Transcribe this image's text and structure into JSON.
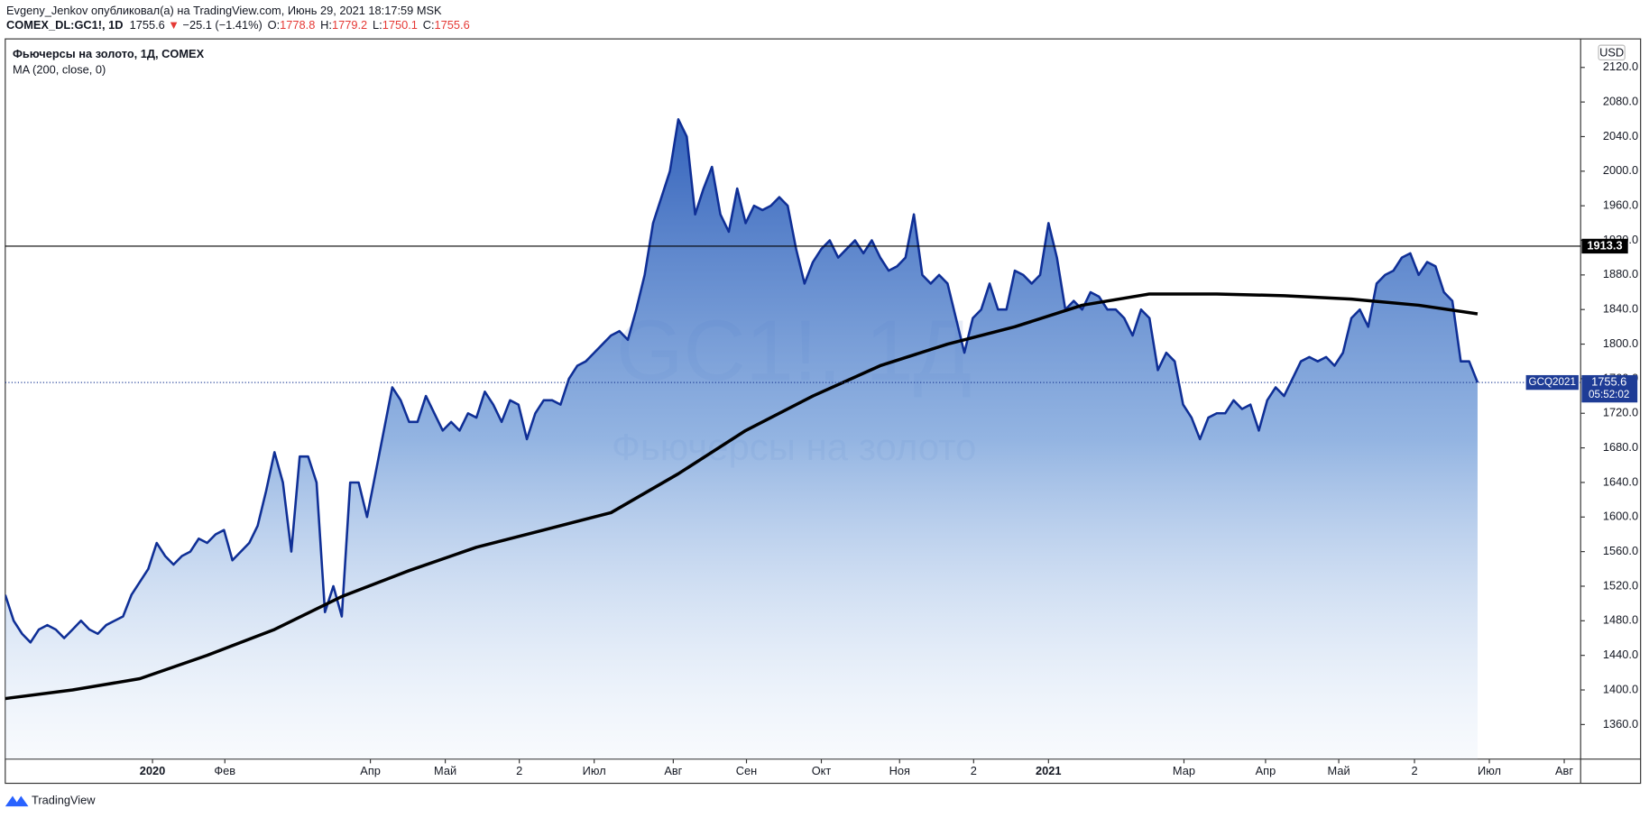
{
  "header": {
    "author": "Evgeny_Jenkov опубликовал(а) на TradingView.com, Июнь 29, 2021 18:17:59 MSK",
    "symbol": "COMEX_DL:GC1!, 1D",
    "last": "1755.6",
    "arrow": "▼",
    "change": "−25.1 (−1.41%)",
    "ohlc": [
      {
        "label": "O:",
        "value": "1778.8"
      },
      {
        "label": "H:",
        "value": "1779.2"
      },
      {
        "label": "L:",
        "value": "1750.1"
      },
      {
        "label": "C:",
        "value": "1755.6"
      }
    ]
  },
  "chart_data": {
    "type": "area",
    "title": "Фьючерсы на золото, 1Д, COMEX",
    "watermark": [
      "GC1!, 1Д",
      "Фьючерсы на золото"
    ],
    "currency": "USD",
    "xlim": [
      0,
      187.25
    ],
    "ylim": [
      1320,
      2153
    ],
    "xticks": [
      {
        "value": 17.5,
        "label": "2020"
      },
      {
        "value": 26.1,
        "label": "Фев"
      },
      {
        "value": 43.4,
        "label": "Апр"
      },
      {
        "value": 52.3,
        "label": "Май"
      },
      {
        "value": 61.1,
        "label": "2"
      },
      {
        "value": 70,
        "label": "Июл"
      },
      {
        "value": 79.4,
        "label": "Авг"
      },
      {
        "value": 88.1,
        "label": "Сен"
      },
      {
        "value": 97,
        "label": "Окт"
      },
      {
        "value": 106.3,
        "label": "Ноя"
      },
      {
        "value": 115.1,
        "label": "2"
      },
      {
        "value": 124,
        "label": "2021"
      },
      {
        "value": 140.1,
        "label": "Мар"
      },
      {
        "value": 149.8,
        "label": "Апр"
      },
      {
        "value": 158.5,
        "label": "Май"
      },
      {
        "value": 167.5,
        "label": "2"
      },
      {
        "value": 176.4,
        "label": "Июл"
      },
      {
        "value": 185.3,
        "label": "Авг"
      }
    ],
    "yticks": [
      {
        "value": 1360,
        "label": "1360.0"
      },
      {
        "value": 1400,
        "label": "1400.0"
      },
      {
        "value": 1440,
        "label": "1440.0"
      },
      {
        "value": 1480,
        "label": "1480.0"
      },
      {
        "value": 1520,
        "label": "1520.0"
      },
      {
        "value": 1560,
        "label": "1560.0"
      },
      {
        "value": 1600,
        "label": "1600.0"
      },
      {
        "value": 1640,
        "label": "1640.0"
      },
      {
        "value": 1680,
        "label": "1680.0"
      },
      {
        "value": 1720,
        "label": "1720.0"
      },
      {
        "value": 1760,
        "label": "1760.0"
      },
      {
        "value": 1800,
        "label": "1800.0"
      },
      {
        "value": 1840,
        "label": "1840.0"
      },
      {
        "value": 1880,
        "label": "1880.0"
      },
      {
        "value": 1920,
        "label": "1920.0"
      },
      {
        "value": 1960,
        "label": "1960.0"
      },
      {
        "value": 2000,
        "label": "2000.0"
      },
      {
        "value": 2040,
        "label": "2040.0"
      },
      {
        "value": 2080,
        "label": "2080.0"
      },
      {
        "value": 2120,
        "label": "2120.0"
      }
    ],
    "hline": 1913.3,
    "countdown": "05:52:02",
    "series": [
      {
        "name": "GCQ2021",
        "color": "#0f2f96",
        "values": [
          1510,
          1480,
          1465,
          1455,
          1470,
          1475,
          1470,
          1460,
          1470,
          1480,
          1470,
          1465,
          1475,
          1480,
          1485,
          1510,
          1525,
          1540,
          1570,
          1555,
          1545,
          1555,
          1560,
          1575,
          1570,
          1580,
          1585,
          1550,
          1560,
          1570,
          1590,
          1630,
          1675,
          1640,
          1560,
          1670,
          1670,
          1640,
          1490,
          1520,
          1485,
          1640,
          1640,
          1600,
          1650,
          1700,
          1750,
          1735,
          1710,
          1710,
          1740,
          1720,
          1700,
          1710,
          1700,
          1720,
          1715,
          1745,
          1730,
          1710,
          1735,
          1730,
          1690,
          1720,
          1735,
          1735,
          1730,
          1760,
          1775,
          1780,
          1790,
          1800,
          1810,
          1815,
          1805,
          1840,
          1880,
          1940,
          1970,
          2000,
          2060,
          2040,
          1950,
          1980,
          2005,
          1950,
          1930,
          1980,
          1940,
          1960,
          1955,
          1960,
          1970,
          1960,
          1910,
          1870,
          1895,
          1910,
          1920,
          1900,
          1910,
          1920,
          1905,
          1920,
          1900,
          1885,
          1890,
          1900,
          1950,
          1880,
          1870,
          1880,
          1870,
          1830,
          1790,
          1830,
          1840,
          1870,
          1840,
          1840,
          1885,
          1880,
          1870,
          1880,
          1940,
          1900,
          1840,
          1850,
          1840,
          1860,
          1855,
          1840,
          1840,
          1830,
          1810,
          1840,
          1830,
          1770,
          1790,
          1780,
          1730,
          1715,
          1690,
          1715,
          1720,
          1720,
          1735,
          1725,
          1730,
          1700,
          1735,
          1750,
          1740,
          1760,
          1780,
          1785,
          1780,
          1785,
          1775,
          1790,
          1830,
          1840,
          1820,
          1870,
          1880,
          1885,
          1900,
          1905,
          1880,
          1895,
          1890,
          1860,
          1850,
          1780,
          1780,
          1755.6
        ]
      },
      {
        "name": "MA (200, close, 0)",
        "color": "#000000",
        "x": [
          0,
          8,
          16,
          24,
          32,
          40,
          48,
          56,
          64,
          72,
          80,
          88,
          96,
          104,
          112,
          120,
          128,
          136,
          144,
          152,
          160,
          168,
          175
        ],
        "values": [
          1390,
          1400,
          1413,
          1440,
          1470,
          1508,
          1538,
          1565,
          1585,
          1605,
          1650,
          1700,
          1740,
          1775,
          1800,
          1820,
          1845,
          1858,
          1858,
          1856,
          1852,
          1845,
          1835
        ]
      }
    ]
  },
  "footer": {
    "brand": "TradingView"
  }
}
